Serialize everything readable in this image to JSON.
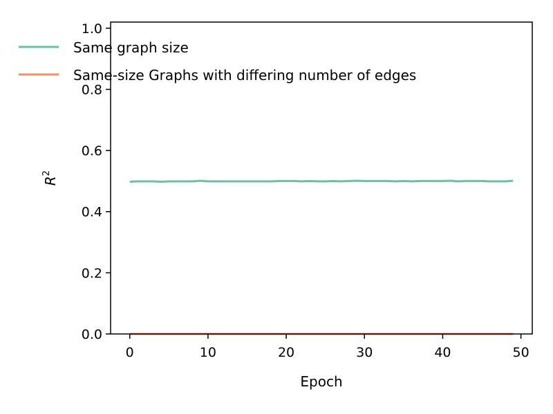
{
  "chart_data": {
    "type": "line",
    "xlabel": "Epoch",
    "ylabel": "R",
    "ylabel_superscript": "2",
    "xlim": [
      -2.45,
      51.45
    ],
    "ylim": [
      0.0,
      1.02
    ],
    "x_ticks": [
      0,
      10,
      20,
      30,
      40,
      50
    ],
    "x_tick_labels": [
      "0",
      "10",
      "20",
      "30",
      "40",
      "50"
    ],
    "y_ticks": [
      0.0,
      0.2,
      0.4,
      0.6,
      0.8,
      1.0
    ],
    "y_tick_labels": [
      "0.0",
      "0.2",
      "0.4",
      "0.6",
      "0.8",
      "1.0"
    ],
    "grid": false,
    "legend_position": "top-left",
    "x": [
      0,
      1,
      2,
      3,
      4,
      5,
      6,
      7,
      8,
      9,
      10,
      11,
      12,
      13,
      14,
      15,
      16,
      17,
      18,
      19,
      20,
      21,
      22,
      23,
      24,
      25,
      26,
      27,
      28,
      29,
      30,
      31,
      32,
      33,
      34,
      35,
      36,
      37,
      38,
      39,
      40,
      41,
      42,
      43,
      44,
      45,
      46,
      47,
      48,
      49
    ],
    "series": [
      {
        "name": "Same graph size",
        "color": "#66c2a5",
        "values": [
          0.498,
          0.499,
          0.499,
          0.499,
          0.498,
          0.499,
          0.499,
          0.499,
          0.499,
          0.501,
          0.499,
          0.499,
          0.499,
          0.499,
          0.499,
          0.499,
          0.499,
          0.499,
          0.499,
          0.5,
          0.5,
          0.5,
          0.499,
          0.5,
          0.499,
          0.499,
          0.5,
          0.499,
          0.5,
          0.501,
          0.5,
          0.5,
          0.5,
          0.5,
          0.499,
          0.5,
          0.499,
          0.5,
          0.5,
          0.5,
          0.5,
          0.501,
          0.499,
          0.5,
          0.5,
          0.5,
          0.499,
          0.499,
          0.499,
          0.501
        ]
      },
      {
        "name": "Same-size Graphs with differing number of edges",
        "color": "#fc8d62",
        "values": [
          0.0,
          0.0,
          0.0,
          0.0,
          0.0,
          0.0,
          0.0,
          0.0,
          0.0,
          0.0,
          0.0,
          0.0,
          0.0,
          0.0,
          0.0,
          0.0,
          0.0,
          0.0,
          0.0,
          0.0,
          0.0,
          0.0,
          0.0,
          0.0,
          0.0,
          0.0,
          0.0,
          0.0,
          0.0,
          0.0,
          0.0,
          0.0,
          0.0,
          0.0,
          0.0,
          0.0,
          0.0,
          0.0,
          0.0,
          0.0,
          0.0,
          0.0,
          0.0,
          0.0,
          0.0,
          0.0,
          0.0,
          0.0,
          0.0,
          0.0
        ]
      }
    ]
  }
}
